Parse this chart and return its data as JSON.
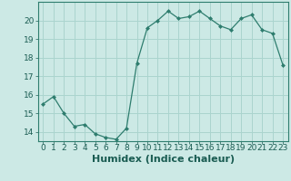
{
  "x": [
    0,
    1,
    2,
    3,
    4,
    5,
    6,
    7,
    8,
    9,
    10,
    11,
    12,
    13,
    14,
    15,
    16,
    17,
    18,
    19,
    20,
    21,
    22,
    23
  ],
  "y": [
    15.5,
    15.9,
    15.0,
    14.3,
    14.4,
    13.9,
    13.7,
    13.6,
    14.2,
    17.7,
    19.6,
    20.0,
    20.5,
    20.1,
    20.2,
    20.5,
    20.1,
    19.7,
    19.5,
    20.1,
    20.3,
    19.5,
    19.3,
    17.6
  ],
  "xlabel": "Humidex (Indice chaleur)",
  "ylim": [
    13.5,
    21.0
  ],
  "xlim": [
    -0.5,
    23.5
  ],
  "yticks": [
    14,
    15,
    16,
    17,
    18,
    19,
    20
  ],
  "xticks": [
    0,
    1,
    2,
    3,
    4,
    5,
    6,
    7,
    8,
    9,
    10,
    11,
    12,
    13,
    14,
    15,
    16,
    17,
    18,
    19,
    20,
    21,
    22,
    23
  ],
  "line_color": "#2e7d6e",
  "marker_color": "#2e7d6e",
  "bg_color": "#cce9e5",
  "grid_color": "#aad4ce",
  "tick_label_fontsize": 6.5,
  "xlabel_fontsize": 8
}
